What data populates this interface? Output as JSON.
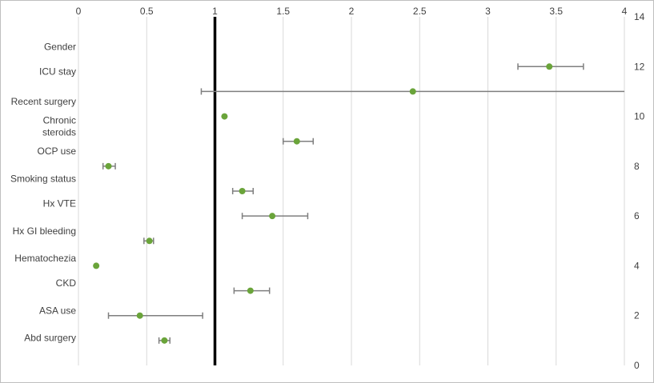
{
  "chart_data": {
    "type": "scatter",
    "subtype": "forest-plot-with-error-bars",
    "title": "",
    "xlabel": "",
    "ylabel": "",
    "x_axis": {
      "position": "top",
      "range": [
        0,
        4
      ],
      "ticks": [
        0,
        0.5,
        1,
        1.5,
        2,
        2.5,
        3,
        3.5,
        4
      ],
      "tick_labels": [
        "0",
        "0.5",
        "1",
        "1.5",
        "2",
        "2.5",
        "3",
        "3.5",
        "4"
      ]
    },
    "y_axis": {
      "position": "right",
      "range": [
        0,
        14
      ],
      "ticks": [
        0,
        2,
        4,
        6,
        8,
        10,
        12,
        14
      ],
      "tick_labels": [
        "0",
        "2",
        "4",
        "6",
        "8",
        "10",
        "12",
        "14"
      ]
    },
    "reference_line": {
      "x": 1,
      "color": "#000000"
    },
    "grid": {
      "vertical": true,
      "horizontal": false
    },
    "category_labels": [
      {
        "lines": [
          "Gender"
        ],
        "y": 12.8
      },
      {
        "lines": [
          "ICU stay"
        ],
        "y": 11.8
      },
      {
        "lines": [
          "Recent surgery"
        ],
        "y": 10.6
      },
      {
        "lines": [
          "Chronic",
          "steroids"
        ],
        "y": 9.6
      },
      {
        "lines": [
          "OCP use"
        ],
        "y": 8.6
      },
      {
        "lines": [
          "Smoking status"
        ],
        "y": 7.5
      },
      {
        "lines": [
          "Hx VTE"
        ],
        "y": 6.5
      },
      {
        "lines": [
          "Hx GI bleeding"
        ],
        "y": 5.4
      },
      {
        "lines": [
          "Hematochezia"
        ],
        "y": 4.3
      },
      {
        "lines": [
          "CKD"
        ],
        "y": 3.3
      },
      {
        "lines": [
          "ASA use"
        ],
        "y": 2.2
      },
      {
        "lines": [
          "Abd surgery"
        ],
        "y": 1.1
      }
    ],
    "points": [
      {
        "x": 3.45,
        "y": 12.0,
        "lo": 3.22,
        "hi": 3.7
      },
      {
        "x": 2.45,
        "y": 11.0,
        "lo": 0.9,
        "hi": 4.0
      },
      {
        "x": 1.07,
        "y": 10.0,
        "lo": null,
        "hi": null
      },
      {
        "x": 1.6,
        "y": 9.0,
        "lo": 1.5,
        "hi": 1.72
      },
      {
        "x": 0.22,
        "y": 8.0,
        "lo": 0.18,
        "hi": 0.27
      },
      {
        "x": 1.2,
        "y": 7.0,
        "lo": 1.13,
        "hi": 1.28
      },
      {
        "x": 1.42,
        "y": 6.0,
        "lo": 1.2,
        "hi": 1.68
      },
      {
        "x": 0.52,
        "y": 5.0,
        "lo": 0.48,
        "hi": 0.55
      },
      {
        "x": 0.13,
        "y": 4.0,
        "lo": null,
        "hi": null
      },
      {
        "x": 1.26,
        "y": 3.0,
        "lo": 1.14,
        "hi": 1.4
      },
      {
        "x": 0.45,
        "y": 2.0,
        "lo": 0.22,
        "hi": 0.91
      },
      {
        "x": 0.63,
        "y": 1.0,
        "lo": 0.59,
        "hi": 0.67
      }
    ],
    "colors": {
      "marker": "#6aa43a",
      "error_bar": "#7f7f7f",
      "grid": "#d9d9d9",
      "text": "#404040",
      "reference_line": "#000000"
    }
  }
}
